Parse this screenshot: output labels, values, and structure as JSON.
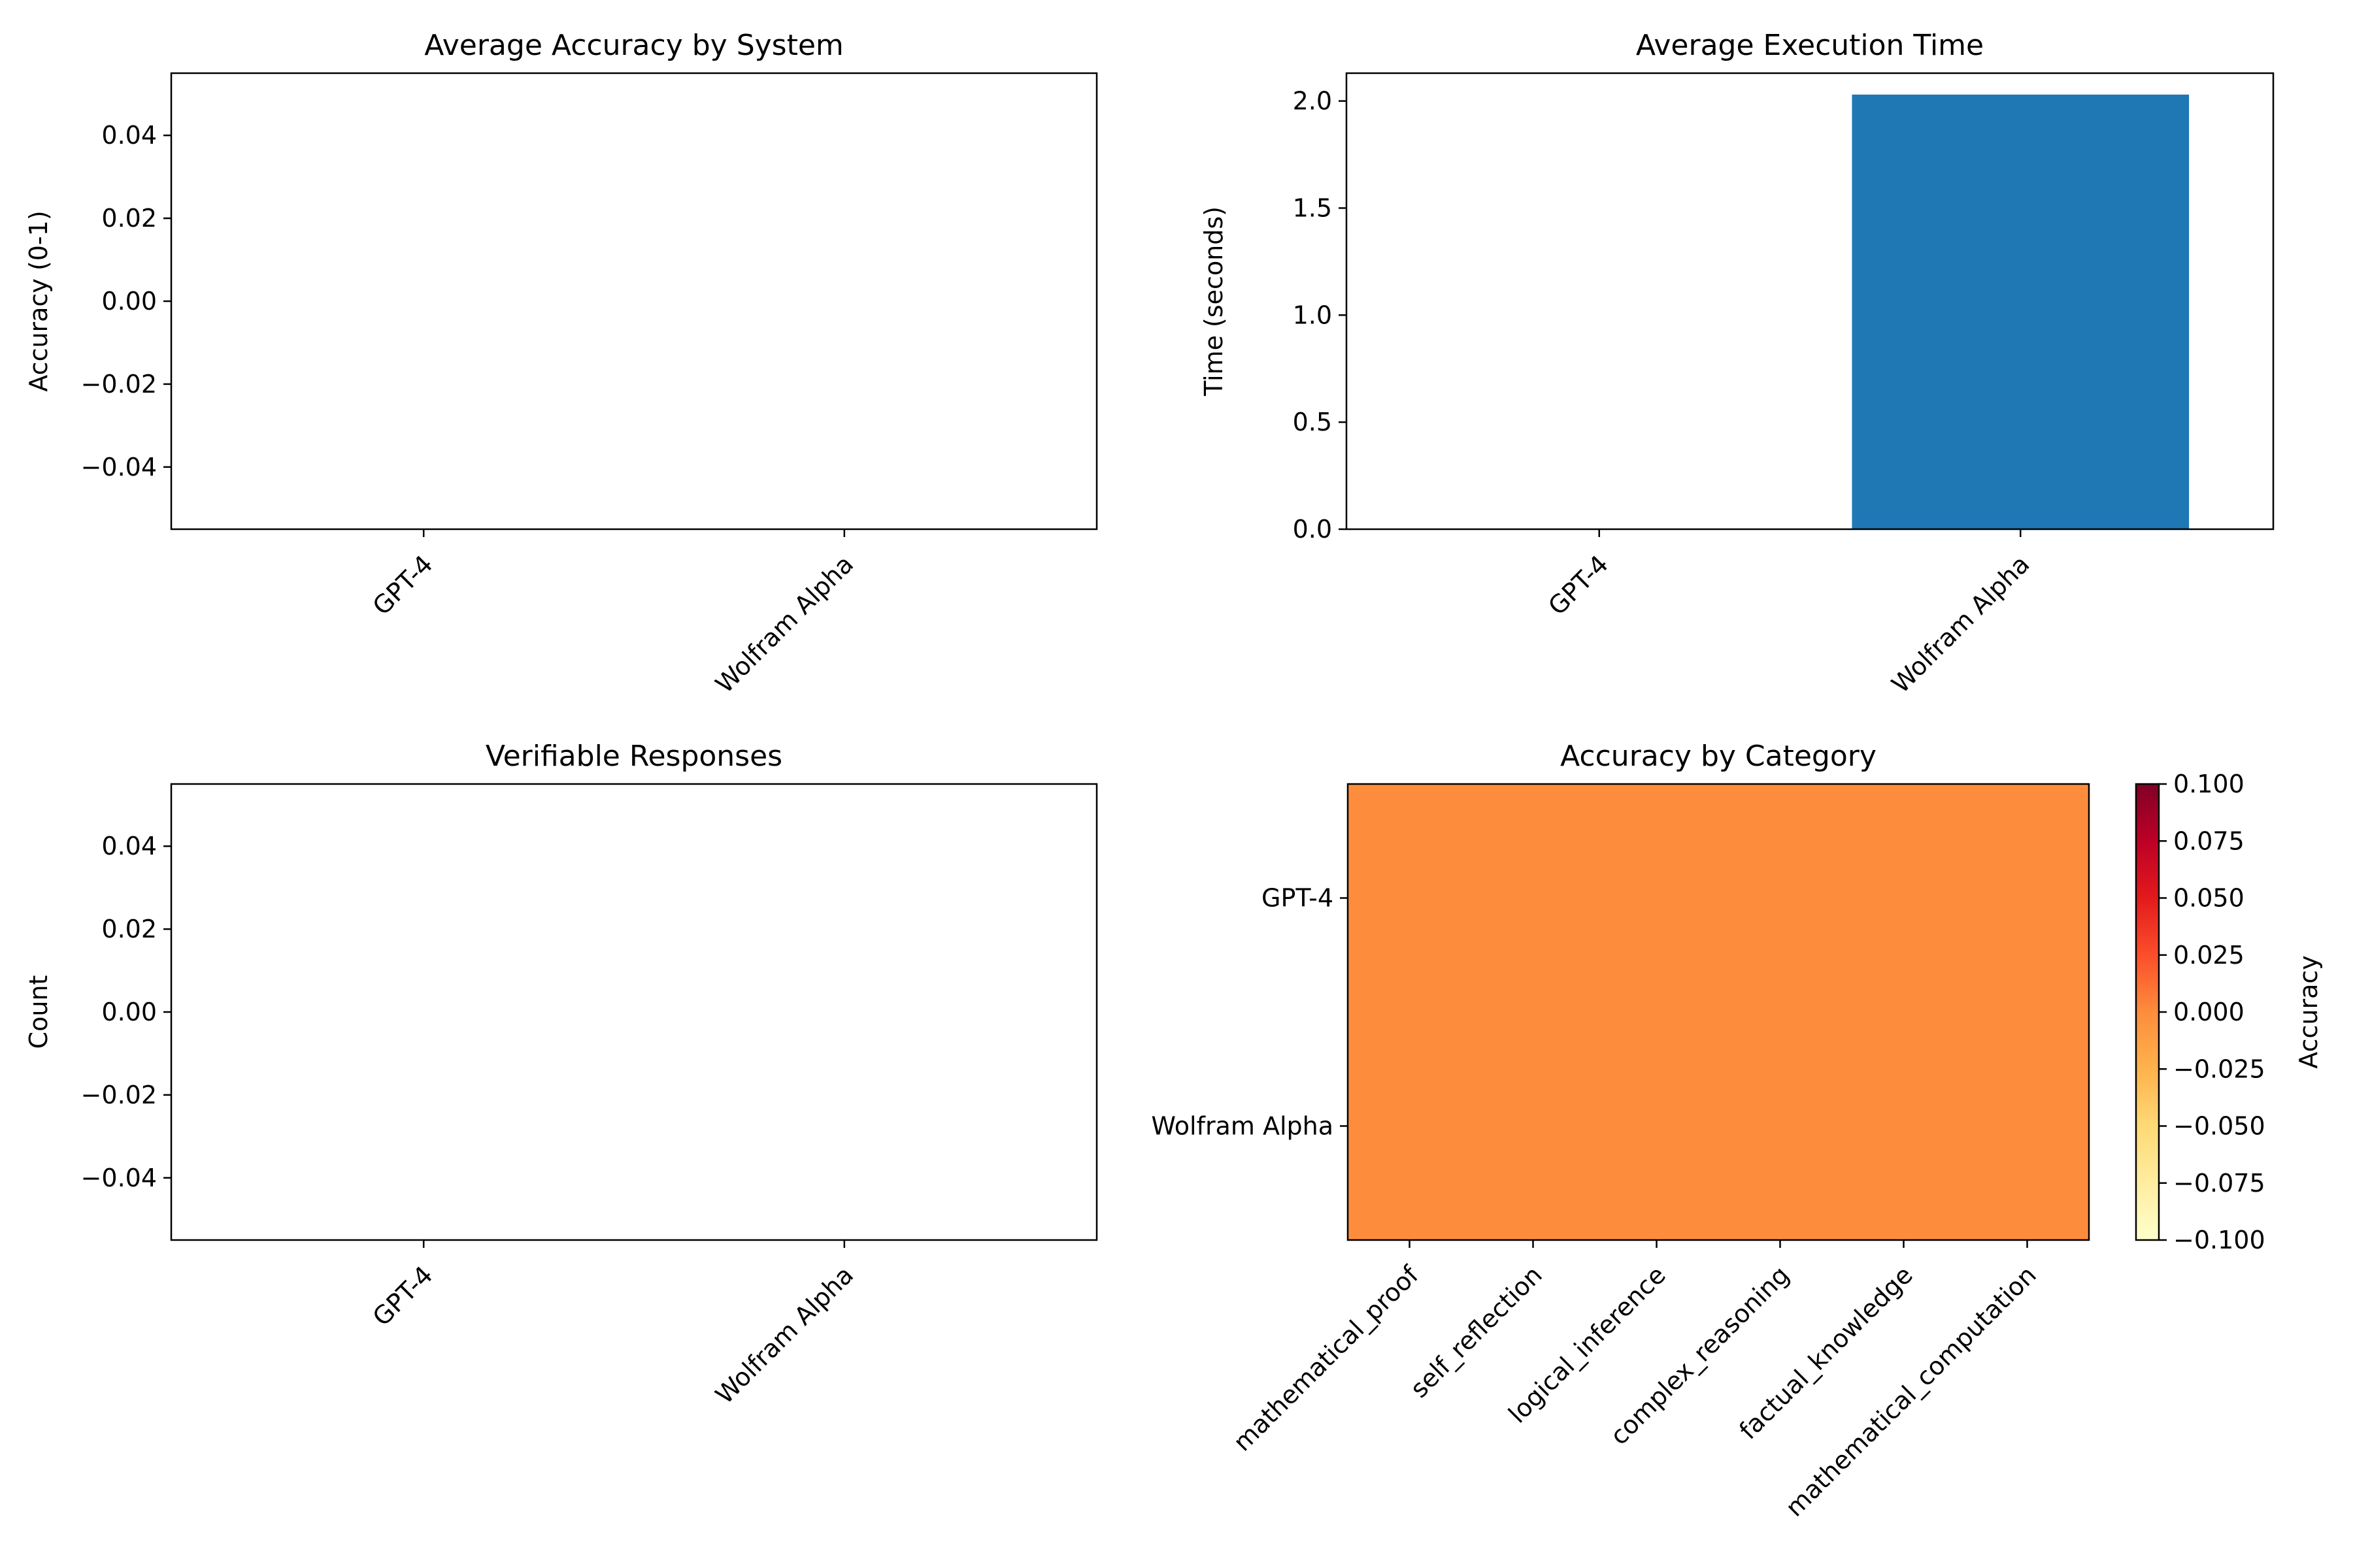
{
  "chart_data": [
    {
      "type": "bar",
      "title": "Average Accuracy by System",
      "xlabel": "",
      "ylabel": "Accuracy (0-1)",
      "categories": [
        "GPT-4",
        "Wolfram Alpha"
      ],
      "values": [
        0,
        0
      ],
      "ylim": [
        -0.055,
        0.055
      ],
      "yticks": [
        -0.04,
        -0.02,
        0.0,
        0.02,
        0.04
      ],
      "ytick_labels": [
        "−0.04",
        "−0.02",
        "0.00",
        "0.02",
        "0.04"
      ],
      "bar_color": "#1f77b4",
      "grid": false
    },
    {
      "type": "bar",
      "title": "Average Execution Time",
      "xlabel": "",
      "ylabel": "Time (seconds)",
      "categories": [
        "GPT-4",
        "Wolfram Alpha"
      ],
      "values": [
        0,
        2.03
      ],
      "ylim": [
        0,
        2.13
      ],
      "yticks": [
        0.0,
        0.5,
        1.0,
        1.5,
        2.0
      ],
      "ytick_labels": [
        "0.0",
        "0.5",
        "1.0",
        "1.5",
        "2.0"
      ],
      "bar_color": "#1f77b4",
      "grid": false
    },
    {
      "type": "bar",
      "title": "Verifiable Responses",
      "xlabel": "",
      "ylabel": "Count",
      "categories": [
        "GPT-4",
        "Wolfram Alpha"
      ],
      "values": [
        0,
        0
      ],
      "ylim": [
        -0.055,
        0.055
      ],
      "yticks": [
        -0.04,
        -0.02,
        0.0,
        0.02,
        0.04
      ],
      "ytick_labels": [
        "−0.04",
        "−0.02",
        "0.00",
        "0.02",
        "0.04"
      ],
      "bar_color": "#1f77b4",
      "grid": false
    },
    {
      "type": "heatmap",
      "title": "Accuracy by Category",
      "rows": [
        "GPT-4",
        "Wolfram Alpha"
      ],
      "columns": [
        "mathematical_proof",
        "self_reflection",
        "logical_inference",
        "complex_reasoning",
        "factual_knowledge",
        "mathematical_computation"
      ],
      "values": [
        [
          0,
          0,
          0,
          0,
          0,
          0
        ],
        [
          0,
          0,
          0,
          0,
          0,
          0
        ]
      ],
      "colormap": "YlOrRd",
      "cell_color": "#fd8d3c",
      "colorbar": {
        "label": "Accuracy",
        "range": [
          -0.1,
          0.1
        ],
        "ticks": [
          -0.1,
          -0.075,
          -0.05,
          -0.025,
          0.0,
          0.025,
          0.05,
          0.075,
          0.1
        ],
        "tick_labels": [
          "−0.100",
          "−0.075",
          "−0.050",
          "−0.025",
          "0.000",
          "0.025",
          "0.050",
          "0.075",
          "0.100"
        ],
        "stops": [
          "#ffffcc",
          "#ffeda0",
          "#fed976",
          "#feb24c",
          "#fd8d3c",
          "#fc4e2a",
          "#e31a1c",
          "#bd0026",
          "#800026"
        ]
      }
    }
  ]
}
